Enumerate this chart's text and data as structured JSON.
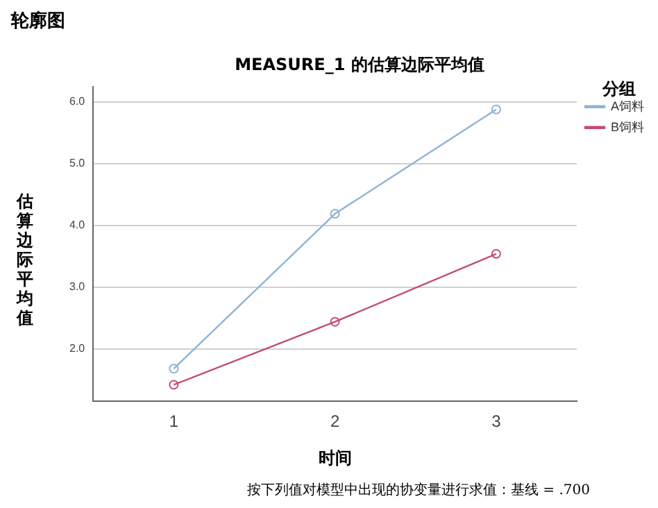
{
  "chart_data": {
    "type": "line",
    "title": "MEASURE_1 的估算边际平均值",
    "xlabel": "时间",
    "ylabel": "估算边际平均值",
    "legend_title": "分组",
    "categories": [
      "1",
      "2",
      "3"
    ],
    "series": [
      {
        "name": "A饲料",
        "color": "#8fb3d6",
        "values": [
          1.68,
          4.19,
          5.88
        ]
      },
      {
        "name": "B饲料",
        "color": "#c24d6e",
        "values": [
          1.42,
          2.44,
          3.54
        ]
      }
    ],
    "ylim": [
      1.15,
      6.25
    ],
    "yticks": [
      {
        "value": 2,
        "label": "2.0"
      },
      {
        "value": 3,
        "label": "3.0"
      },
      {
        "value": 4,
        "label": "4.0"
      },
      {
        "value": 5,
        "label": "5.0"
      },
      {
        "value": 6,
        "label": "6.0"
      }
    ],
    "grid": "y",
    "legend": "right",
    "marker": "circle",
    "line_style": "solid",
    "annotations": [
      "轮廓图",
      "按下列值对模型中出现的协变量进行求值：基线 = .700"
    ]
  }
}
